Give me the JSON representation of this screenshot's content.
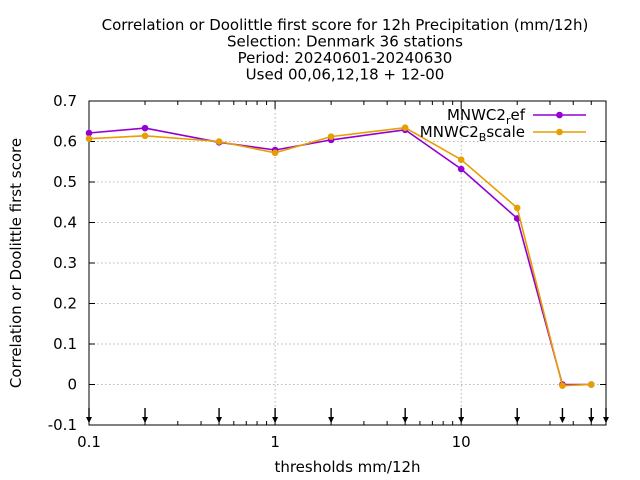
{
  "chart_data": {
    "type": "line",
    "title": [
      "Correlation or Doolittle first score  for 12h Precipitation (mm/12h)",
      "Selection: Denmark      36 stations",
      "Period: 20240601-20240630",
      "Used 00,06,12,18 + 12-00"
    ],
    "xlabel": "thresholds mm/12h",
    "ylabel": "Correlation or Doolittle first score",
    "x_scale": "log",
    "xlim": [
      0.1,
      60
    ],
    "ylim": [
      -0.1,
      0.7
    ],
    "x_ticks": [
      {
        "value": 0.1,
        "label": "0.1"
      },
      {
        "value": 1,
        "label": "1"
      },
      {
        "value": 10,
        "label": "10"
      }
    ],
    "y_ticks": [
      {
        "value": -0.1,
        "label": "-0.1"
      },
      {
        "value": 0,
        "label": "0"
      },
      {
        "value": 0.1,
        "label": "0.1"
      },
      {
        "value": 0.2,
        "label": "0.2"
      },
      {
        "value": 0.3,
        "label": "0.3"
      },
      {
        "value": 0.4,
        "label": "0.4"
      },
      {
        "value": 0.5,
        "label": "0.5"
      },
      {
        "value": 0.6,
        "label": "0.6"
      },
      {
        "value": 0.7,
        "label": "0.7"
      }
    ],
    "grid": true,
    "legend_position": "top-right",
    "threshold_markers": [
      0.1,
      0.2,
      0.5,
      1,
      2,
      5,
      10,
      20,
      35,
      50,
      60
    ],
    "x": [
      0.1,
      0.2,
      0.5,
      1,
      2,
      5,
      10,
      20,
      35,
      50
    ],
    "series": [
      {
        "name": "MNWC2_ref",
        "legend_base": "MNWC2",
        "legend_sub": "r",
        "legend_rest": "ef",
        "color": "#9400d3",
        "values": [
          0.621,
          0.633,
          0.598,
          0.579,
          0.604,
          0.629,
          0.532,
          0.41,
          0.0,
          0.0
        ]
      },
      {
        "name": "MNWC2_Bscale",
        "legend_base": "MNWC2",
        "legend_sub": "B",
        "legend_rest": "scale",
        "color": "#e69f00",
        "values": [
          0.607,
          0.614,
          0.6,
          0.572,
          0.612,
          0.634,
          0.555,
          0.436,
          -0.003,
          0.0
        ]
      }
    ]
  }
}
